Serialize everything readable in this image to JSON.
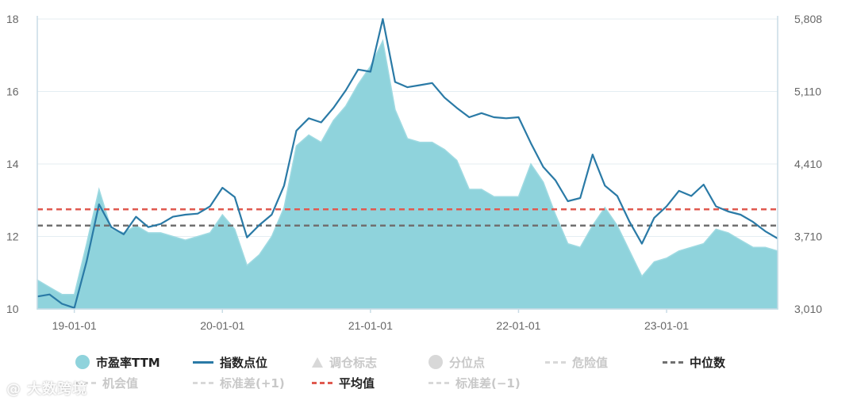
{
  "chart_data": {
    "type": "area+line",
    "x_ticks": [
      "19-01-01",
      "20-01-01",
      "21-01-01",
      "22-01-01",
      "23-01-01"
    ],
    "left_axis": {
      "ylim": [
        10,
        18
      ],
      "ticks": [
        "10",
        "12",
        "14",
        "16",
        "18"
      ]
    },
    "right_axis": {
      "ylim": [
        3010,
        5808
      ],
      "ticks": [
        "3,010",
        "3,710",
        "4,410",
        "5,110",
        "5,808"
      ]
    },
    "reference_lines": {
      "mean": 12.75,
      "median": 12.3
    },
    "series": [
      {
        "name": "市盈率TTM",
        "type": "area",
        "axis": "left",
        "x": [
          "18-10-01",
          "18-11-01",
          "18-12-01",
          "19-01-01",
          "19-02-01",
          "19-03-01",
          "19-04-01",
          "19-05-01",
          "19-06-01",
          "19-07-01",
          "19-08-01",
          "19-09-01",
          "19-10-01",
          "19-11-01",
          "19-12-01",
          "20-01-01",
          "20-02-01",
          "20-03-01",
          "20-04-01",
          "20-05-01",
          "20-06-01",
          "20-07-01",
          "20-08-01",
          "20-09-01",
          "20-10-01",
          "20-11-01",
          "20-12-01",
          "21-01-01",
          "21-02-01",
          "21-03-01",
          "21-04-01",
          "21-05-01",
          "21-06-01",
          "21-07-01",
          "21-08-01",
          "21-09-01",
          "21-10-01",
          "21-11-01",
          "21-12-01",
          "22-01-01",
          "22-02-01",
          "22-03-01",
          "22-04-01",
          "22-05-01",
          "22-06-01",
          "22-07-01",
          "22-08-01",
          "22-09-01",
          "22-10-01",
          "22-11-01",
          "22-12-01",
          "23-01-01",
          "23-02-01",
          "23-03-01",
          "23-04-01",
          "23-05-01",
          "23-06-01",
          "23-07-01",
          "23-08-01",
          "23-09-01",
          "23-10-01"
        ],
        "values": [
          10.8,
          10.6,
          10.4,
          10.4,
          11.8,
          13.3,
          12.2,
          12.1,
          12.3,
          12.1,
          12.1,
          12.0,
          11.9,
          12.0,
          12.1,
          12.6,
          12.2,
          11.2,
          11.5,
          12.0,
          12.8,
          14.5,
          14.8,
          14.6,
          15.2,
          15.6,
          16.2,
          16.7,
          17.4,
          15.5,
          14.7,
          14.6,
          14.6,
          14.4,
          14.1,
          13.3,
          13.3,
          13.1,
          13.1,
          13.1,
          14.0,
          13.5,
          12.6,
          11.8,
          11.7,
          12.3,
          12.8,
          12.3,
          11.6,
          10.9,
          11.3,
          11.4,
          11.6,
          11.7,
          11.8,
          12.2,
          12.1,
          11.9,
          11.7,
          11.7,
          11.6
        ]
      },
      {
        "name": "指数点位",
        "type": "line",
        "axis": "right",
        "x": [
          "18-10-01",
          "18-11-01",
          "18-12-01",
          "19-01-01",
          "19-02-01",
          "19-03-01",
          "19-04-01",
          "19-05-01",
          "19-06-01",
          "19-07-01",
          "19-08-01",
          "19-09-01",
          "19-10-01",
          "19-11-01",
          "19-12-01",
          "20-01-01",
          "20-02-01",
          "20-03-01",
          "20-04-01",
          "20-05-01",
          "20-06-01",
          "20-07-01",
          "20-08-01",
          "20-09-01",
          "20-10-01",
          "20-11-01",
          "20-12-01",
          "21-01-01",
          "21-02-01",
          "21-03-01",
          "21-04-01",
          "21-05-01",
          "21-06-01",
          "21-07-01",
          "21-08-01",
          "21-09-01",
          "21-10-01",
          "21-11-01",
          "21-12-01",
          "22-01-01",
          "22-02-01",
          "22-03-01",
          "22-04-01",
          "22-05-01",
          "22-06-01",
          "22-07-01",
          "22-08-01",
          "22-09-01",
          "22-10-01",
          "22-11-01",
          "22-12-01",
          "23-01-01",
          "23-02-01",
          "23-03-01",
          "23-04-01",
          "23-05-01",
          "23-06-01",
          "23-07-01",
          "23-08-01",
          "23-09-01",
          "23-10-01"
        ],
        "values": [
          3130,
          3150,
          3060,
          3020,
          3470,
          4020,
          3800,
          3730,
          3900,
          3800,
          3830,
          3900,
          3920,
          3930,
          4000,
          4180,
          4090,
          3700,
          3820,
          3920,
          4200,
          4730,
          4850,
          4810,
          4950,
          5120,
          5320,
          5300,
          5808,
          5200,
          5150,
          5170,
          5190,
          5050,
          4950,
          4860,
          4900,
          4860,
          4850,
          4860,
          4610,
          4380,
          4250,
          4050,
          4080,
          4500,
          4200,
          4100,
          3850,
          3640,
          3890,
          4000,
          4150,
          4100,
          4210,
          4000,
          3950,
          3920,
          3850,
          3760,
          3690
        ]
      },
      {
        "name": "调仓标志",
        "enabled": false
      },
      {
        "name": "分位点",
        "enabled": false
      },
      {
        "name": "危险值",
        "enabled": false
      },
      {
        "name": "中位数",
        "type": "dashed-line",
        "axis": "left"
      },
      {
        "name": "机会值",
        "enabled": false
      },
      {
        "name": "标准差(+1)",
        "enabled": false
      },
      {
        "name": "平均值",
        "type": "dashed-line",
        "axis": "left"
      },
      {
        "name": "标准差(−1)",
        "enabled": false
      }
    ],
    "colors": {
      "area_fill": "#8fd3dc",
      "area_edge": "#9fdae2",
      "index_line": "#2a7aa6",
      "mean_line": "#e05a50",
      "median_line": "#707070",
      "axis_line": "#c9dce6",
      "grid": "#e4edf2",
      "disabled": "#c8c8c8"
    }
  },
  "legend": {
    "pe": "市盈率TTM",
    "index": "指数点位",
    "rebalance": "调仓标志",
    "percentile": "分位点",
    "danger": "危险值",
    "median": "中位数",
    "opportunity": "机会值",
    "std_plus": "标准差(+1)",
    "mean": "平均值",
    "std_minus": "标准差(−1)"
  },
  "watermark": "大数跨境"
}
